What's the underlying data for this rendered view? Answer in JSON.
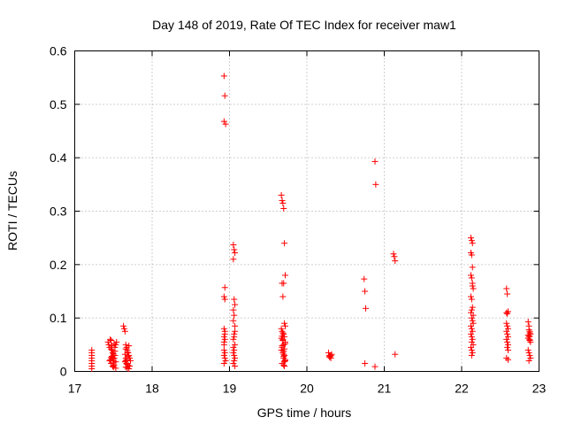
{
  "chart_data": {
    "type": "scatter",
    "title": "Day 148 of 2019, Rate Of TEC Index for receiver maw1",
    "xlabel": "GPS time / hours",
    "ylabel": "ROTI / TECUs",
    "xlim": [
      17,
      23
    ],
    "ylim": [
      0,
      0.6
    ],
    "xticks": [
      "17",
      "18",
      "19",
      "20",
      "21",
      "22",
      "23"
    ],
    "yticks": [
      "0",
      "0.1",
      "0.2",
      "0.3",
      "0.4",
      "0.5",
      "0.6"
    ],
    "grid": true,
    "marker": "+",
    "color": "#ff0000",
    "series": [
      {
        "name": "maw1",
        "x": [
          17.22,
          17.22,
          17.22,
          17.22,
          17.22,
          17.22,
          17.22,
          17.22,
          17.43,
          17.44,
          17.45,
          17.46,
          17.47,
          17.48,
          17.49,
          17.5,
          17.51,
          17.52,
          17.53,
          17.54,
          17.45,
          17.47,
          17.49,
          17.51,
          17.53,
          17.46,
          17.48,
          17.5,
          17.52,
          17.47,
          17.5,
          17.53,
          17.48,
          17.51,
          17.47,
          17.49,
          17.52,
          17.5,
          17.5,
          17.5,
          17.63,
          17.64,
          17.65,
          17.66,
          17.67,
          17.68,
          17.69,
          17.7,
          17.71,
          17.72,
          17.65,
          17.67,
          17.69,
          17.71,
          17.66,
          17.68,
          17.7,
          17.67,
          17.69,
          17.65,
          17.68,
          17.66,
          17.7,
          17.67,
          17.66,
          17.66,
          18.93,
          18.94,
          18.93,
          18.95,
          18.94,
          18.93,
          18.94,
          18.93,
          18.94,
          18.93,
          18.94,
          18.93,
          18.93,
          18.94,
          18.93,
          18.94,
          18.95,
          18.93,
          18.94,
          18.93,
          19.05,
          19.06,
          19.07,
          19.05,
          19.06,
          19.07,
          19.05,
          19.06,
          19.05,
          19.07,
          19.06,
          19.05,
          19.07,
          19.06,
          19.05,
          19.06,
          19.07,
          19.06,
          19.05,
          19.07,
          19.06,
          19.05,
          19.07,
          19.67,
          19.68,
          19.69,
          19.7,
          19.71,
          19.72,
          19.68,
          19.7,
          19.69,
          19.71,
          19.72,
          19.67,
          19.68,
          19.7,
          19.71,
          19.69,
          19.72,
          19.7,
          19.68,
          19.67,
          19.69,
          19.71,
          19.7,
          19.72,
          19.68,
          19.7,
          19.71,
          19.67,
          19.69,
          19.72,
          19.68,
          19.7,
          19.7,
          19.72,
          19.71,
          19.71,
          19.68,
          19.69,
          19.7,
          20.28,
          20.29,
          20.3,
          20.31,
          20.32,
          20.29,
          20.31,
          20.3,
          20.74,
          20.75,
          20.76,
          20.75,
          20.88,
          20.89,
          20.88,
          21.12,
          21.13,
          21.14,
          21.14,
          22.12,
          22.13,
          22.14,
          22.12,
          22.13,
          22.14,
          22.12,
          22.13,
          22.14,
          22.15,
          22.12,
          22.13,
          22.14,
          22.12,
          22.13,
          22.14,
          22.15,
          22.12,
          22.13,
          22.14,
          22.12,
          22.13,
          22.14,
          22.13,
          22.15,
          22.12,
          22.13,
          22.14,
          22.13,
          22.15,
          22.13,
          22.14,
          22.58,
          22.59,
          22.6,
          22.58,
          22.59,
          22.6,
          22.58,
          22.59,
          22.6,
          22.58,
          22.59,
          22.6,
          22.59,
          22.6,
          22.58,
          22.6,
          22.59,
          22.58,
          22.86,
          22.87,
          22.88,
          22.89,
          22.86,
          22.87,
          22.88,
          22.89,
          22.86,
          22.87,
          22.88,
          22.89,
          22.87,
          22.88,
          22.86,
          22.88,
          22.87,
          22.88
        ],
        "y": [
          0.04,
          0.035,
          0.03,
          0.025,
          0.02,
          0.015,
          0.01,
          0.005,
          0.055,
          0.05,
          0.045,
          0.06,
          0.058,
          0.04,
          0.035,
          0.03,
          0.025,
          0.045,
          0.05,
          0.055,
          0.02,
          0.015,
          0.01,
          0.012,
          0.018,
          0.022,
          0.028,
          0.033,
          0.038,
          0.042,
          0.008,
          0.006,
          0.048,
          0.052,
          0.026,
          0.024,
          0.03,
          0.03,
          0.02,
          0.016,
          0.085,
          0.08,
          0.075,
          0.05,
          0.045,
          0.04,
          0.035,
          0.03,
          0.025,
          0.02,
          0.018,
          0.015,
          0.012,
          0.01,
          0.008,
          0.006,
          0.005,
          0.022,
          0.028,
          0.032,
          0.036,
          0.042,
          0.048,
          0.014,
          0.025,
          0.02,
          0.553,
          0.516,
          0.468,
          0.463,
          0.157,
          0.14,
          0.135,
          0.08,
          0.075,
          0.065,
          0.06,
          0.05,
          0.04,
          0.035,
          0.03,
          0.025,
          0.02,
          0.015,
          0.07,
          0.055,
          0.237,
          0.228,
          0.222,
          0.21,
          0.135,
          0.125,
          0.115,
          0.105,
          0.095,
          0.085,
          0.07,
          0.06,
          0.05,
          0.04,
          0.035,
          0.03,
          0.025,
          0.02,
          0.015,
          0.01,
          0.065,
          0.045,
          0.075,
          0.33,
          0.32,
          0.315,
          0.305,
          0.24,
          0.18,
          0.165,
          0.165,
          0.14,
          0.09,
          0.085,
          0.08,
          0.075,
          0.07,
          0.065,
          0.06,
          0.055,
          0.05,
          0.045,
          0.04,
          0.035,
          0.03,
          0.025,
          0.02,
          0.015,
          0.012,
          0.01,
          0.062,
          0.058,
          0.052,
          0.048,
          0.038,
          0.028,
          0.022,
          0.018,
          0.042,
          0.066,
          0.072,
          0.032,
          0.035,
          0.03,
          0.028,
          0.025,
          0.032,
          0.027,
          0.03,
          0.028,
          0.173,
          0.15,
          0.118,
          0.015,
          0.393,
          0.35,
          0.009,
          0.22,
          0.215,
          0.207,
          0.032,
          0.25,
          0.245,
          0.24,
          0.222,
          0.218,
          0.195,
          0.18,
          0.175,
          0.165,
          0.155,
          0.14,
          0.135,
          0.12,
          0.11,
          0.1,
          0.095,
          0.09,
          0.085,
          0.08,
          0.075,
          0.07,
          0.065,
          0.06,
          0.055,
          0.05,
          0.045,
          0.04,
          0.035,
          0.03,
          0.105,
          0.115,
          0.16,
          0.155,
          0.145,
          0.112,
          0.11,
          0.085,
          0.08,
          0.075,
          0.07,
          0.065,
          0.06,
          0.055,
          0.05,
          0.045,
          0.04,
          0.025,
          0.022,
          0.108,
          0.09,
          0.093,
          0.085,
          0.075,
          0.07,
          0.068,
          0.065,
          0.06,
          0.055,
          0.04,
          0.035,
          0.03,
          0.025,
          0.02,
          0.072,
          0.062,
          0.058,
          0.078,
          0.066
        ]
      }
    ]
  }
}
